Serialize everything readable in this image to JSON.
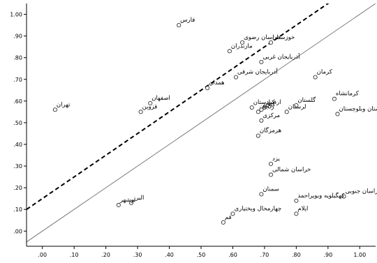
{
  "chart_data": {
    "type": "scatter",
    "title": "",
    "xlabel": "",
    "ylabel": "",
    "xlim": [
      -0.05,
      1.05
    ],
    "ylim": [
      -0.07,
      1.05
    ],
    "x_ticks": [
      ".00",
      ".10",
      ".20",
      ".30",
      ".40",
      ".50",
      ".60",
      ".70",
      ".80",
      ".90",
      "1.00"
    ],
    "y_ticks": [
      ".00",
      ".10",
      ".20",
      ".30",
      ".40",
      ".50",
      ".60",
      ".70",
      ".80",
      ".90",
      "1.00"
    ],
    "grid": false,
    "reference_lines": [
      {
        "style": "solid",
        "slope": 1,
        "intercept": 0
      },
      {
        "style": "dashed",
        "slope": 1,
        "intercept": 0.15
      }
    ],
    "points": [
      {
        "label": "فارس",
        "x": 0.43,
        "y": 0.95
      },
      {
        "label": "خوزستان",
        "x": 0.72,
        "y": 0.87
      },
      {
        "label": "خراسان رضوی",
        "x": 0.63,
        "y": 0.87
      },
      {
        "label": "مازندران",
        "x": 0.59,
        "y": 0.83
      },
      {
        "label": "آذربایجان غربی",
        "x": 0.69,
        "y": 0.78
      },
      {
        "label": "آذربایجان شرقی",
        "x": 0.61,
        "y": 0.71
      },
      {
        "label": "همدان",
        "x": 0.52,
        "y": 0.66
      },
      {
        "label": "کرمان",
        "x": 0.86,
        "y": 0.71
      },
      {
        "label": "کرمانشاه",
        "x": 0.92,
        "y": 0.61
      },
      {
        "label": "اصفهان",
        "x": 0.34,
        "y": 0.59
      },
      {
        "label": "قزوین",
        "x": 0.31,
        "y": 0.55
      },
      {
        "label": "تهران",
        "x": 0.04,
        "y": 0.56
      },
      {
        "label": "گلستان",
        "x": 0.8,
        "y": 0.58
      },
      {
        "label": "اردبیل",
        "x": 0.7,
        "y": 0.57
      },
      {
        "label": "کردستان",
        "x": 0.66,
        "y": 0.57
      },
      {
        "label": "زنجان",
        "x": 0.68,
        "y": 0.55
      },
      {
        "label": "گیلان",
        "x": 0.69,
        "y": 0.56
      },
      {
        "label": "لرستان",
        "x": 0.77,
        "y": 0.55
      },
      {
        "label": "سیستان وبلوچستان",
        "x": 0.93,
        "y": 0.54
      },
      {
        "label": "مرکزی",
        "x": 0.69,
        "y": 0.51
      },
      {
        "label": "هرمزگان",
        "x": 0.68,
        "y": 0.44
      },
      {
        "label": "یزد",
        "x": 0.72,
        "y": 0.31
      },
      {
        "label": "خراسان شمالی",
        "x": 0.72,
        "y": 0.26
      },
      {
        "label": "سمنان",
        "x": 0.69,
        "y": 0.17
      },
      {
        "label": "خراسان جنوبی",
        "x": 0.95,
        "y": 0.16
      },
      {
        "label": "کهگیلویه وبویراحمد",
        "x": 0.8,
        "y": 0.14
      },
      {
        "label": "البرز",
        "x": 0.28,
        "y": 0.13
      },
      {
        "label": "بوشهر",
        "x": 0.24,
        "y": 0.12
      },
      {
        "label": "چهارمحال وبختیاری",
        "x": 0.6,
        "y": 0.08
      },
      {
        "label": "ایلام",
        "x": 0.8,
        "y": 0.08
      },
      {
        "label": "قم",
        "x": 0.57,
        "y": 0.04
      }
    ]
  }
}
